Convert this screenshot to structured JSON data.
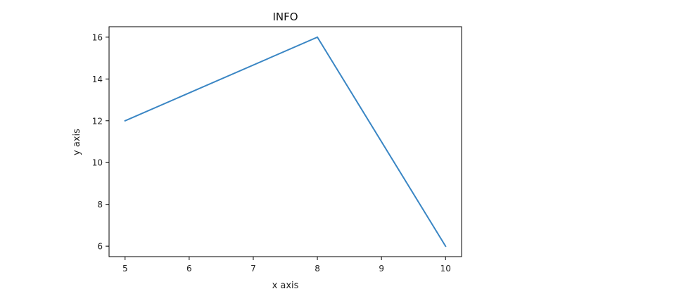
{
  "chart_data": {
    "type": "line",
    "title": "INFO",
    "xlabel": "x axis",
    "ylabel": "y axis",
    "x": [
      5,
      8,
      10
    ],
    "series": [
      {
        "values": [
          12,
          16,
          6
        ],
        "color": "#3a86c4"
      }
    ],
    "xticks": [
      5,
      6,
      7,
      8,
      9,
      10
    ],
    "yticks": [
      6,
      8,
      10,
      12,
      14,
      16
    ],
    "xlim": [
      4.75,
      10.25
    ],
    "ylim": [
      5.5,
      16.5
    ],
    "grid": false,
    "legend": "none"
  }
}
